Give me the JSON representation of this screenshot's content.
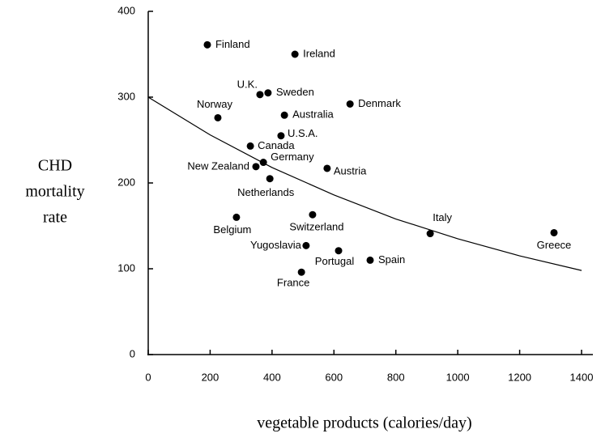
{
  "chart_data": {
    "type": "scatter",
    "xlabel": "vegetable products (calories/day)",
    "ylabel": [
      "CHD",
      "mortality",
      "rate"
    ],
    "color": "#000000",
    "points": [
      {
        "name": "Finland",
        "x": 191,
        "y": 361
      },
      {
        "name": "Ireland",
        "x": 474,
        "y": 350
      },
      {
        "name": "U.K.",
        "x": 361,
        "y": 303
      },
      {
        "name": "Sweden",
        "x": 387,
        "y": 305
      },
      {
        "name": "Norway",
        "x": 225,
        "y": 276
      },
      {
        "name": "Australia",
        "x": 440,
        "y": 279
      },
      {
        "name": "Denmark",
        "x": 652,
        "y": 292
      },
      {
        "name": "U.S.A.",
        "x": 429,
        "y": 255
      },
      {
        "name": "Canada",
        "x": 330,
        "y": 243
      },
      {
        "name": "Germany",
        "x": 372,
        "y": 224
      },
      {
        "name": "New Zealand",
        "x": 348,
        "y": 219
      },
      {
        "name": "Austria",
        "x": 578,
        "y": 217
      },
      {
        "name": "Netherlands",
        "x": 393,
        "y": 205
      },
      {
        "name": "Belgium",
        "x": 285,
        "y": 160
      },
      {
        "name": "Switzerland",
        "x": 531,
        "y": 163
      },
      {
        "name": "Italy",
        "x": 911,
        "y": 141
      },
      {
        "name": "Greece",
        "x": 1311,
        "y": 142
      },
      {
        "name": "Yugoslavia",
        "x": 510,
        "y": 127
      },
      {
        "name": "Portugal",
        "x": 615,
        "y": 121
      },
      {
        "name": "Spain",
        "x": 717,
        "y": 110
      },
      {
        "name": "France",
        "x": 495,
        "y": 96
      }
    ],
    "fit_line": {
      "x": [
        0,
        200,
        400,
        600,
        800,
        1000,
        1200,
        1400
      ],
      "y": [
        300,
        256,
        218,
        186,
        158,
        135,
        115,
        98
      ]
    },
    "xlim": [
      0,
      1400
    ],
    "ylim": [
      0,
      400
    ],
    "xticks": [
      0,
      200,
      400,
      600,
      800,
      1000,
      1200,
      1400
    ],
    "yticks": [
      0,
      100,
      200,
      300,
      400
    ]
  }
}
